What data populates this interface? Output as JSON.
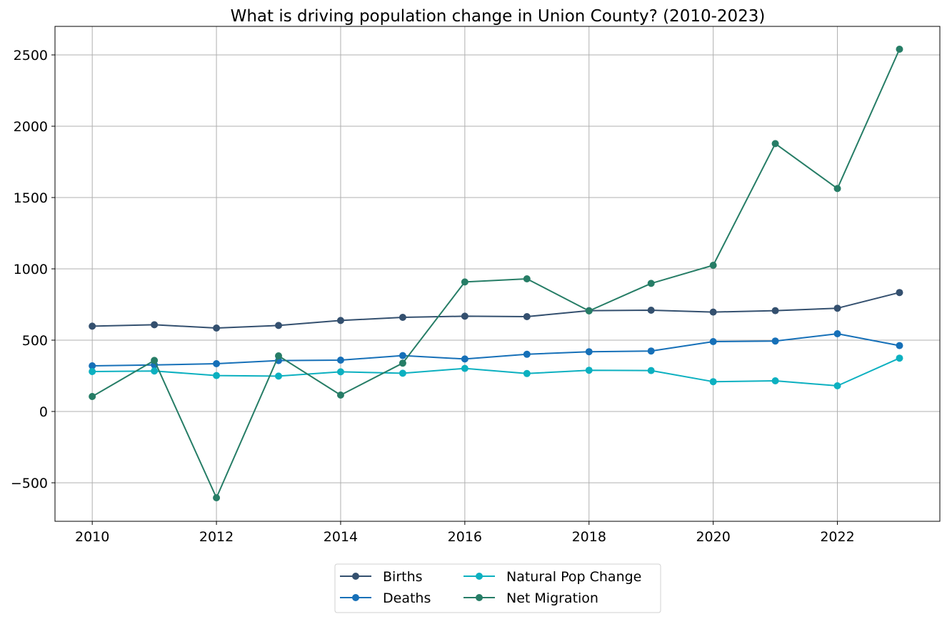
{
  "chart_data": {
    "type": "line",
    "title": "What is driving population change in Union County? (2010-2023)",
    "xlabel": "",
    "ylabel": "",
    "x": [
      2010,
      2011,
      2012,
      2013,
      2014,
      2015,
      2016,
      2017,
      2018,
      2019,
      2020,
      2021,
      2022,
      2023
    ],
    "xlim": [
      2009.4,
      2023.65
    ],
    "ylim": [
      -770,
      2700
    ],
    "x_ticks": [
      2010,
      2012,
      2014,
      2016,
      2018,
      2020,
      2022
    ],
    "x_tick_labels": [
      "2010",
      "2012",
      "2014",
      "2016",
      "2018",
      "2020",
      "2022"
    ],
    "y_ticks": [
      -500,
      0,
      500,
      1000,
      1500,
      2000,
      2500
    ],
    "y_tick_labels": [
      "−500",
      "0",
      "500",
      "1000",
      "1500",
      "2000",
      "2500"
    ],
    "grid": true,
    "legend_position": "bottom-center",
    "series": [
      {
        "name": "Births",
        "color": "#34506f",
        "values": [
          598,
          608,
          585,
          603,
          638,
          660,
          668,
          665,
          707,
          710,
          697,
          707,
          724,
          834
        ]
      },
      {
        "name": "Deaths",
        "color": "#1670b8",
        "values": [
          320,
          326,
          335,
          357,
          360,
          392,
          368,
          401,
          419,
          424,
          490,
          494,
          545,
          462
        ]
      },
      {
        "name": "Natural Pop Change",
        "color": "#0cb0c0",
        "values": [
          280,
          284,
          252,
          248,
          278,
          268,
          302,
          266,
          289,
          287,
          209,
          215,
          180,
          374
        ]
      },
      {
        "name": "Net Migration",
        "color": "#267d66",
        "values": [
          105,
          358,
          -605,
          390,
          115,
          339,
          908,
          930,
          705,
          898,
          1025,
          1878,
          1563,
          2540
        ]
      }
    ]
  }
}
